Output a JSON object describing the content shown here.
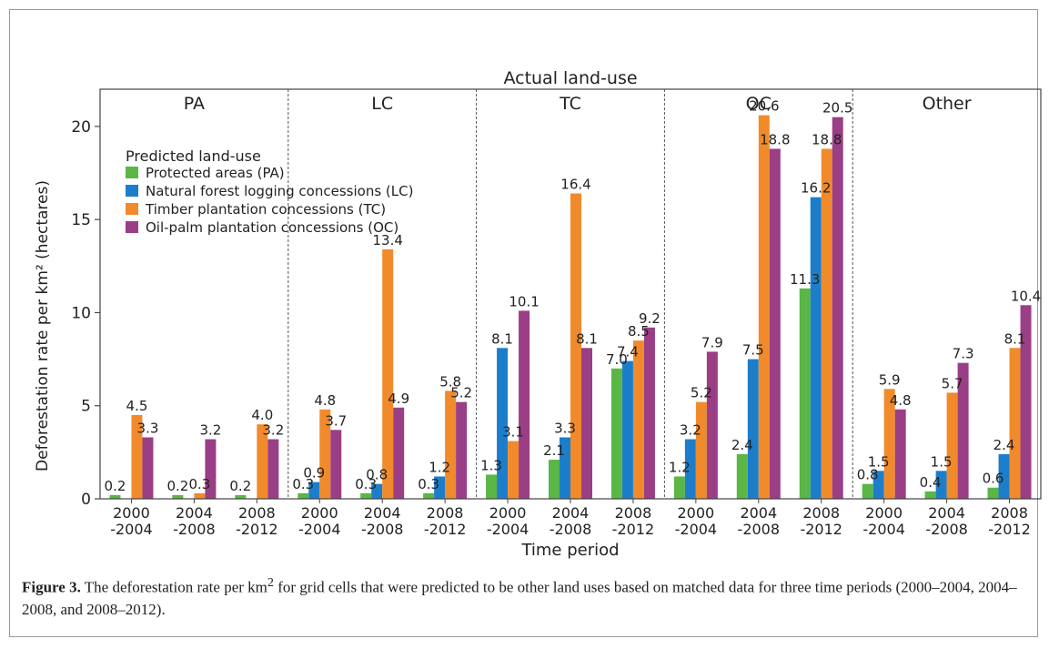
{
  "chart_data": {
    "type": "bar",
    "title": "Actual land-use",
    "ylabel": "Deforestation rate per km² (hectares)",
    "xlabel": "Time period",
    "ylim": [
      0,
      22
    ],
    "yticks": [
      "0",
      "5",
      "10",
      "15",
      "20"
    ],
    "panels": [
      "PA",
      "LC",
      "TC",
      "OC",
      "Other"
    ],
    "periods": [
      {
        "line1": "2000",
        "line2": "-2004"
      },
      {
        "line1": "2004",
        "line2": "-2008"
      },
      {
        "line1": "2008",
        "line2": "-2012"
      }
    ],
    "legend": {
      "title": "Predicted land-use",
      "placement": "top-left",
      "items": [
        "Protected areas (PA)",
        "Natural forest logging concessions (LC)",
        "Timber plantation concessions (TC)",
        "Oil-palm plantation concessions (OC)"
      ]
    },
    "series_colors": [
      "#5ab645",
      "#1c7ecb",
      "#f18a2b",
      "#9a3e86"
    ],
    "values": [
      [
        [
          0.2,
          null,
          4.5,
          3.3
        ],
        [
          0.2,
          null,
          0.3,
          3.2
        ],
        [
          0.2,
          null,
          4.0,
          3.2
        ]
      ],
      [
        [
          0.3,
          0.9,
          4.8,
          3.7
        ],
        [
          0.3,
          0.8,
          13.4,
          4.9
        ],
        [
          0.3,
          1.2,
          5.8,
          5.2
        ]
      ],
      [
        [
          1.3,
          8.1,
          3.1,
          10.1
        ],
        [
          2.1,
          3.3,
          16.4,
          8.1
        ],
        [
          7.0,
          7.4,
          8.5,
          9.2
        ]
      ],
      [
        [
          1.2,
          3.2,
          5.2,
          7.9
        ],
        [
          2.4,
          7.5,
          20.6,
          18.8
        ],
        [
          11.3,
          16.2,
          18.8,
          20.5
        ]
      ],
      [
        [
          0.8,
          1.5,
          5.9,
          4.8
        ],
        [
          0.4,
          1.5,
          5.7,
          7.3
        ],
        [
          0.6,
          2.4,
          8.1,
          10.4
        ]
      ]
    ],
    "value_labels": [
      [
        [
          "0.2",
          "",
          "4.5",
          "3.3"
        ],
        [
          "0.2",
          "",
          "0.3",
          "3.2"
        ],
        [
          "0.2",
          "",
          "4.0",
          "3.2"
        ]
      ],
      [
        [
          "0.3",
          "0.9",
          "4.8",
          "3.7"
        ],
        [
          "0.3",
          "0.8",
          "13.4",
          "4.9"
        ],
        [
          "0.3",
          "1.2",
          "5.8",
          "5.2"
        ]
      ],
      [
        [
          "1.3",
          "8.1",
          "3.1",
          "10.1"
        ],
        [
          "2.1",
          "3.3",
          "16.4",
          "8.1"
        ],
        [
          "7.0",
          "7.4",
          "8.5",
          "9.2"
        ]
      ],
      [
        [
          "1.2",
          "3.2",
          "5.2",
          "7.9"
        ],
        [
          "2.4",
          "7.5",
          "20.6",
          "18.8"
        ],
        [
          "11.3",
          "16.2",
          "18.8",
          "20.5"
        ]
      ],
      [
        [
          "0.8",
          "1.5",
          "5.9",
          "4.8"
        ],
        [
          "0.4",
          "1.5",
          "5.7",
          "7.3"
        ],
        [
          "0.6",
          "2.4",
          "8.1",
          "10.4"
        ]
      ]
    ]
  },
  "caption": {
    "label": "Figure 3.",
    "text_before_sup": " The deforestation rate per km",
    "sup": "2",
    "text_after_sup": " for grid cells that were predicted to be other land uses based on matched data for three time periods (2000–2004, 2004–2008, and 2008–2012)."
  }
}
